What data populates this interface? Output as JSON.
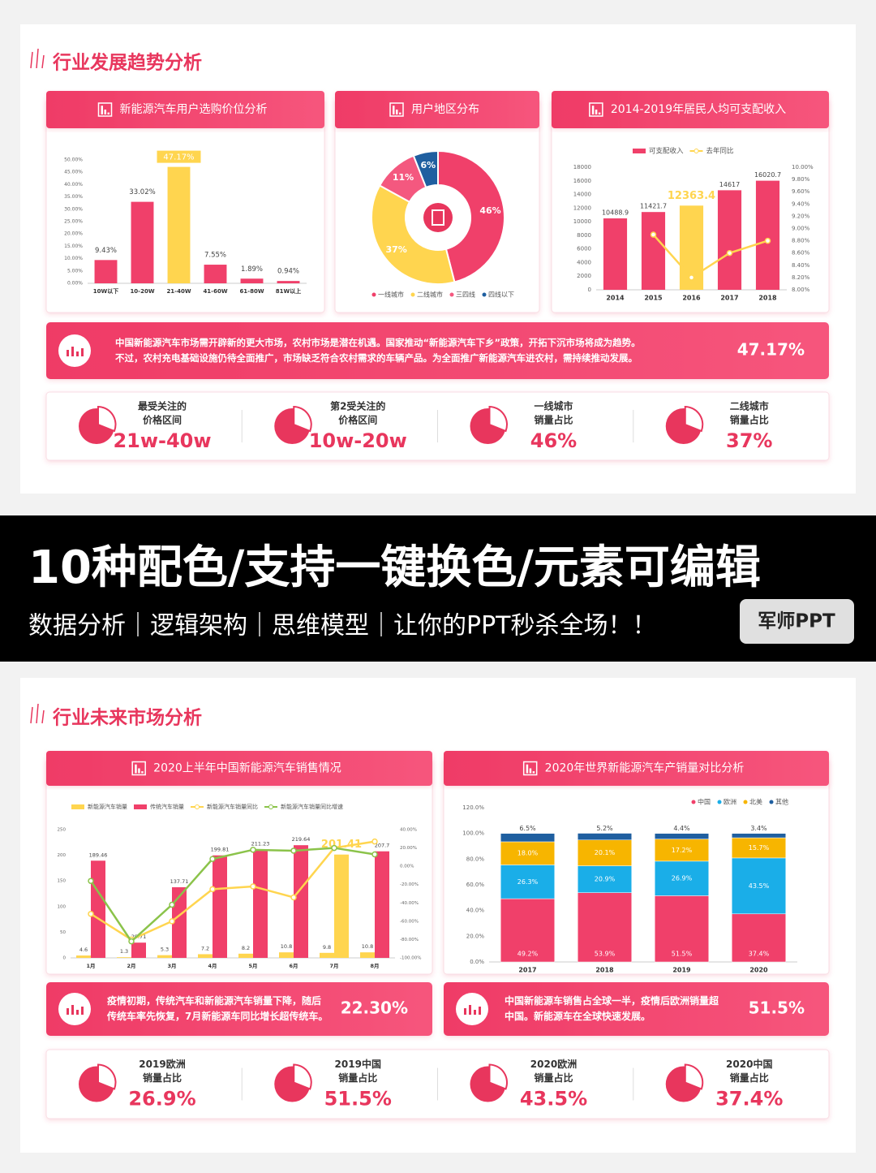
{
  "slides": [
    {
      "title": "行业发展趋势分析",
      "panels": [
        "新能源汽车用户选购价位分析",
        "用户地区分布",
        "2014-2019年居民人均可支配收入"
      ],
      "summaries": [
        {
          "lines": [
            "中国新能源汽车市场需开辟新的更大市场，农村市场是潜在机遇。国家推动“新能源汽车下乡”政策，开拓下沉市场将成为趋势。",
            "不过，农村充电基础设施仍待全面推广，市场缺乏符合农村需求的车辆产品。为全面推广新能源汽车进农村，需持续推动发展。"
          ],
          "value": "47.17%"
        }
      ],
      "stats": [
        {
          "label": [
            "最受关注的",
            "价格区间"
          ],
          "value": "21w-40w"
        },
        {
          "label": [
            "第2受关注的",
            "价格区间"
          ],
          "value": "10w-20w"
        },
        {
          "label": [
            "一线城市",
            "销量占比"
          ],
          "value": "46%"
        },
        {
          "label": [
            "二线城市",
            "销量占比"
          ],
          "value": "37%"
        }
      ]
    },
    {
      "title": "行业未来市场分析",
      "panels": [
        "2020上半年中国新能源汽车销售情况",
        "2020年世界新能源汽车产销量对比分析"
      ],
      "summaries": [
        {
          "lines": [
            "疫情初期，传统汽车和新能源汽车销量下降，随后",
            "传统车率先恢复，7月新能源车同比增长超传统车。"
          ],
          "value": "22.30%"
        },
        {
          "lines": [
            "中国新能源车销售占全球一半，疫情后欧洲销量超",
            "中国。新能源车在全球快速发展。"
          ],
          "value": "51.5%"
        }
      ],
      "stats": [
        {
          "label": [
            "2019欧洲",
            "销量占比"
          ],
          "value": "26.9%"
        },
        {
          "label": [
            "2019中国",
            "销量占比"
          ],
          "value": "51.5%"
        },
        {
          "label": [
            "2020欧洲",
            "销量占比"
          ],
          "value": "43.5%"
        },
        {
          "label": [
            "2020中国",
            "销量占比"
          ],
          "value": "37.4%"
        }
      ]
    }
  ],
  "banner": {
    "headline": "10种配色/支持一键换色/元素可编辑",
    "subline": "数据分析｜逻辑架构｜思维模型｜让你的PPT秒杀全场！！",
    "badge": "军师PPT"
  },
  "chart_data": [
    {
      "type": "bar",
      "categories": [
        "10W以下",
        "10-20W",
        "21-40W",
        "41-60W",
        "61-80W",
        "81W以上"
      ],
      "values": [
        9.43,
        33.02,
        47.17,
        7.55,
        1.89,
        0.94
      ],
      "value_labels": [
        "9.43%",
        "33.02%",
        "47.17%",
        "7.55%",
        "1.89%",
        "0.94%"
      ],
      "color": "#f0406a",
      "colors": [
        "#f0406a",
        "#f0406a",
        "#ffd54f",
        "#f0406a",
        "#f0406a",
        "#f0406a"
      ],
      "ylim": [
        0,
        50
      ],
      "yticks": [
        {
          "value": 0,
          "label": "0.00%"
        },
        {
          "value": 5,
          "label": "5.00%"
        },
        {
          "value": 10,
          "label": "10.00%"
        },
        {
          "value": 15,
          "label": "15.00%"
        },
        {
          "value": 20,
          "label": "20.00%"
        },
        {
          "value": 25,
          "label": "25.00%"
        },
        {
          "value": 30,
          "label": "30.00%"
        },
        {
          "value": 35,
          "label": "35.00%"
        },
        {
          "value": 40,
          "label": "40.00%"
        },
        {
          "value": 45,
          "label": "45.00%"
        },
        {
          "value": 50,
          "label": "50.00%"
        }
      ]
    },
    {
      "type": "pie",
      "categories": [
        "一线城市",
        "二线城市",
        "三四线",
        "四线以下"
      ],
      "values": [
        46,
        37,
        11,
        6
      ],
      "value_labels": [
        "46%",
        "37%",
        "11%",
        "6%"
      ],
      "colors": [
        "#f0406a",
        "#ffd54f",
        "#f4587f",
        "#1f5fa0"
      ]
    },
    {
      "type": "bar_line",
      "categories": [
        "2014",
        "2015",
        "2016",
        "2017",
        "2018"
      ],
      "series": [
        {
          "name": "可支配收入",
          "color": "#f0406a",
          "colors": [
            "#f0406a",
            "#f0406a",
            "#ffd54f",
            "#f0406a",
            "#f0406a"
          ],
          "values": [
            10488.9,
            11421.7,
            12363.4,
            14617,
            16020.7
          ]
        },
        {
          "name": "去年同比",
          "color": "#ffd54f",
          "axis": "y2",
          "values": [
            null,
            8.9,
            8.2,
            8.6,
            8.8
          ]
        }
      ],
      "ylim": [
        0,
        18000
      ],
      "yticks": [
        0,
        2000,
        4000,
        6000,
        8000,
        10000,
        12000,
        14000,
        16000,
        18000
      ],
      "y2lim": [
        8,
        10
      ],
      "y2ticks": [
        {
          "value": 8,
          "label": "8.00%"
        },
        {
          "value": 8.2,
          "label": "8.20%"
        },
        {
          "value": 8.4,
          "label": "8.40%"
        },
        {
          "value": 8.6,
          "label": "8.60%"
        },
        {
          "value": 8.8,
          "label": "8.80%"
        },
        {
          "value": 9,
          "label": "9.00%"
        },
        {
          "value": 9.2,
          "label": "9.20%"
        },
        {
          "value": 9.4,
          "label": "9.40%"
        },
        {
          "value": 9.6,
          "label": "9.60%"
        },
        {
          "value": 9.8,
          "label": "9.80%"
        },
        {
          "value": 10,
          "label": "10.00%"
        }
      ]
    },
    {
      "type": "bar_line",
      "categories": [
        "1月",
        "2月",
        "3月",
        "4月",
        "5月",
        "6月",
        "7月",
        "8月"
      ],
      "series": [
        {
          "name": "新能源汽车销量",
          "color": "#ffd54f",
          "colors": [
            "#ffd54f",
            "#ffd54f",
            "#ffd54f",
            "#ffd54f",
            "#ffd54f",
            "#ffd54f",
            "#ffd54f",
            "#ffd54f"
          ],
          "values": [
            4.6,
            1.3,
            5.3,
            7.2,
            8.2,
            10.8,
            9.8,
            10.8
          ]
        },
        {
          "name": "传统汽车销量",
          "color": "#f0406a",
          "colors": [
            "#f0406a",
            "#f0406a",
            "#f0406a",
            "#f0406a",
            "#f0406a",
            "#f0406a",
            "#ffd54f",
            "#f0406a"
          ],
          "values": [
            189.46,
            29.71,
            137.71,
            199.81,
            211.23,
            219.64,
            201.41,
            207.7
          ]
        },
        {
          "name": "新能源汽车销量同比",
          "color": "#ffd54f",
          "axis": "y2",
          "values": [
            -52,
            -80,
            -60,
            -25,
            -22,
            -34,
            20,
            27
          ]
        },
        {
          "name": "新能源汽车销量同比增速",
          "color": "#8bc34a",
          "axis": "y2",
          "values": [
            -16,
            -82,
            -42,
            8,
            18,
            17,
            20,
            13
          ]
        }
      ],
      "ylim": [
        0,
        250
      ],
      "yticks": [
        0,
        50,
        100,
        150,
        200,
        250
      ],
      "y2lim": [
        -100,
        40
      ],
      "y2ticks": [
        {
          "value": -100,
          "label": "-100.00%"
        },
        {
          "value": -80,
          "label": "-80.00%"
        },
        {
          "value": -60,
          "label": "-60.00%"
        },
        {
          "value": -40,
          "label": "-40.00%"
        },
        {
          "value": -20,
          "label": "-20.00%"
        },
        {
          "value": 0,
          "label": "0.00%"
        },
        {
          "value": 20,
          "label": "20.00%"
        },
        {
          "value": 40,
          "label": "40.00%"
        }
      ]
    },
    {
      "type": "stacked_bar",
      "categories": [
        "2017",
        "2018",
        "2019",
        "2020"
      ],
      "series": [
        {
          "name": "中国",
          "color": "#f0406a",
          "values": [
            49.2,
            53.9,
            51.5,
            37.4
          ],
          "value_labels": [
            "49.2%",
            "53.9%",
            "51.5%",
            "37.4%"
          ]
        },
        {
          "name": "欧洲",
          "color": "#1aaee8",
          "values": [
            26.3,
            20.9,
            26.9,
            43.5
          ],
          "value_labels": [
            "26.3%",
            "20.9%",
            "26.9%",
            "43.5%"
          ]
        },
        {
          "name": "北美",
          "color": "#f7b500",
          "values": [
            18.0,
            20.1,
            17.2,
            15.7
          ],
          "value_labels": [
            "18.0%",
            "20.1%",
            "17.2%",
            "15.7%"
          ]
        },
        {
          "name": "其他",
          "color": "#1f5fa0",
          "values": [
            6.5,
            5.2,
            4.4,
            3.4
          ],
          "value_labels": [
            "6.5%",
            "5.2%",
            "4.4%",
            "3.4%"
          ]
        }
      ],
      "ylim": [
        0,
        120
      ],
      "yticks": [
        {
          "value": 0,
          "label": "0.0%"
        },
        {
          "value": 20,
          "label": "20.0%"
        },
        {
          "value": 40,
          "label": "40.0%"
        },
        {
          "value": 60,
          "label": "60.0%"
        },
        {
          "value": 80,
          "label": "80.0%"
        },
        {
          "value": 100,
          "label": "100.0%"
        },
        {
          "value": 120,
          "label": "120.0%"
        }
      ]
    }
  ]
}
